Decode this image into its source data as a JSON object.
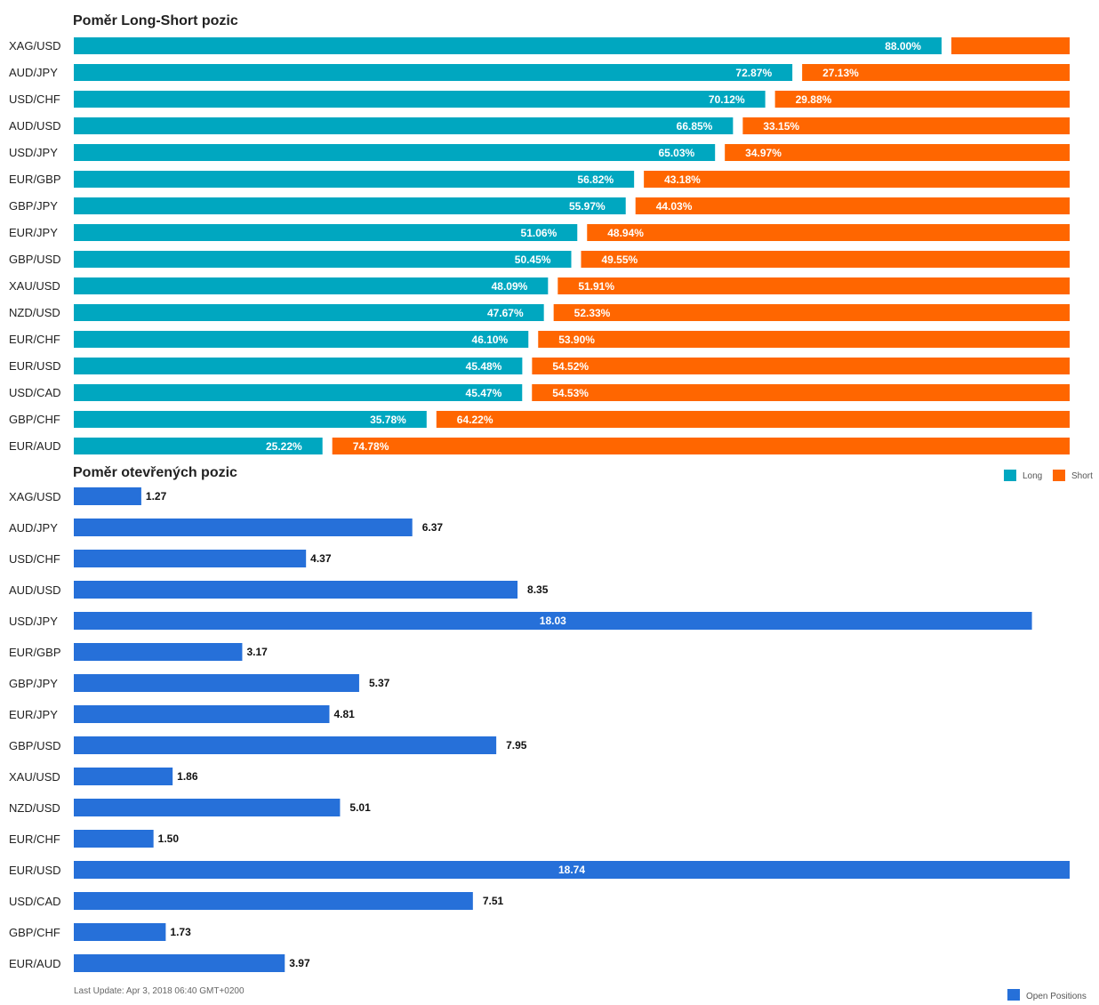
{
  "colors": {
    "long": "#00a7c0",
    "short": "#ff6600",
    "open_positions": "#2670d9",
    "text": "#222222",
    "muted": "#666666",
    "bar_label_light": "#ffffff",
    "bar_label_dark": "#111111"
  },
  "footer": {
    "last_update": "Last Update: Apr 3, 2018 06:40 GMT+0200"
  },
  "chart_data": [
    {
      "type": "bar",
      "orientation": "horizontal",
      "stacked": true,
      "title": "Poměr Long-Short pozic",
      "categories": [
        "XAG/USD",
        "AUD/JPY",
        "USD/CHF",
        "AUD/USD",
        "USD/JPY",
        "EUR/GBP",
        "GBP/JPY",
        "EUR/JPY",
        "GBP/USD",
        "XAU/USD",
        "NZD/USD",
        "EUR/CHF",
        "EUR/USD",
        "USD/CAD",
        "GBP/CHF",
        "EUR/AUD"
      ],
      "series": [
        {
          "name": "Long",
          "values": [
            88.0,
            72.87,
            70.12,
            66.85,
            65.03,
            56.82,
            55.97,
            51.06,
            50.45,
            48.09,
            47.67,
            46.1,
            45.48,
            45.47,
            35.78,
            25.22
          ],
          "labels": [
            "88.00%",
            "72.87%",
            "70.12%",
            "66.85%",
            "65.03%",
            "56.82%",
            "55.97%",
            "51.06%",
            "50.45%",
            "48.09%",
            "47.67%",
            "46.10%",
            "45.48%",
            "45.47%",
            "35.78%",
            "25.22%"
          ]
        },
        {
          "name": "Short",
          "values": [
            12.0,
            27.13,
            29.88,
            33.15,
            34.97,
            43.18,
            44.03,
            48.94,
            49.55,
            51.91,
            52.33,
            53.9,
            54.52,
            54.53,
            64.22,
            74.78
          ],
          "labels": [
            "",
            "27.13%",
            "29.88%",
            "33.15%",
            "34.97%",
            "43.18%",
            "44.03%",
            "48.94%",
            "49.55%",
            "51.91%",
            "52.33%",
            "53.90%",
            "54.52%",
            "54.53%",
            "64.22%",
            "74.78%"
          ]
        }
      ],
      "legend_position": "bottom-right",
      "grid": false
    },
    {
      "type": "bar",
      "orientation": "horizontal",
      "title": "Poměr otevřených pozic",
      "categories": [
        "XAG/USD",
        "AUD/JPY",
        "USD/CHF",
        "AUD/USD",
        "USD/JPY",
        "EUR/GBP",
        "GBP/JPY",
        "EUR/JPY",
        "GBP/USD",
        "XAU/USD",
        "NZD/USD",
        "EUR/CHF",
        "EUR/USD",
        "USD/CAD",
        "GBP/CHF",
        "EUR/AUD"
      ],
      "series": [
        {
          "name": "Open Positions",
          "values": [
            1.27,
            6.37,
            4.37,
            8.35,
            18.03,
            3.17,
            5.37,
            4.81,
            7.95,
            1.86,
            5.01,
            1.5,
            18.74,
            7.51,
            1.73,
            3.97
          ],
          "labels": [
            "1.27",
            "6.37",
            "4.37",
            "8.35",
            "18.03",
            "3.17",
            "5.37",
            "4.81",
            "7.95",
            "1.86",
            "5.01",
            "1.50",
            "18.74",
            "7.51",
            "1.73",
            "3.97"
          ]
        }
      ],
      "xlim": [
        0,
        18.74
      ],
      "legend_position": "bottom-right",
      "grid": false
    }
  ]
}
